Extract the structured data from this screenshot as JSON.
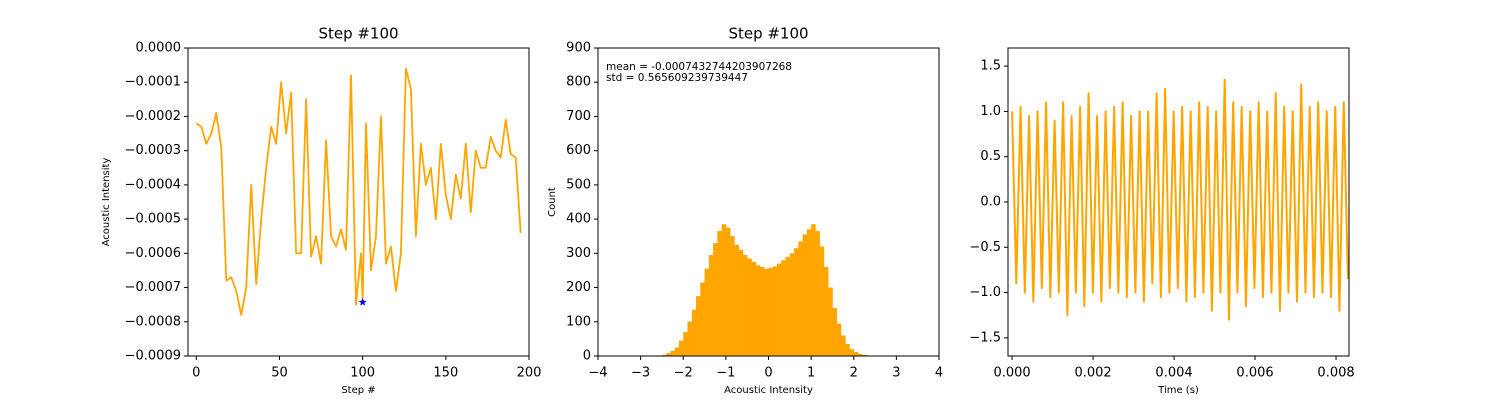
{
  "chart_data": [
    {
      "type": "line",
      "title": "Step #100",
      "xlabel": "Step #",
      "ylabel": "Acoustic Intensity",
      "color": "#ffa500",
      "x": [
        0,
        3,
        6,
        9,
        12,
        15,
        18,
        21,
        24,
        27,
        30,
        33,
        36,
        39,
        42,
        45,
        48,
        51,
        54,
        57,
        60,
        63,
        66,
        69,
        72,
        75,
        78,
        81,
        84,
        87,
        90,
        93,
        96,
        99,
        100,
        102,
        105,
        108,
        111,
        114,
        117,
        120,
        123,
        126,
        129,
        132,
        135,
        138,
        141,
        144,
        147,
        150,
        153,
        156,
        159,
        162,
        165,
        168,
        171,
        174,
        177,
        180,
        183,
        186,
        189,
        192,
        195
      ],
      "values": [
        -0.00022,
        -0.00023,
        -0.00028,
        -0.00025,
        -0.00019,
        -0.00029,
        -0.00068,
        -0.00067,
        -0.00071,
        -0.00078,
        -0.0007,
        -0.0004,
        -0.00069,
        -0.0005,
        -0.00035,
        -0.00023,
        -0.00028,
        -0.0001,
        -0.00025,
        -0.00013,
        -0.0006,
        -0.0006,
        -0.00015,
        -0.00061,
        -0.00055,
        -0.00063,
        -0.00027,
        -0.00055,
        -0.00058,
        -0.00053,
        -0.00059,
        -8e-05,
        -0.00075,
        -0.0006,
        -0.000743,
        -0.00022,
        -0.00065,
        -0.00055,
        -0.0002,
        -0.00063,
        -0.00058,
        -0.00071,
        -0.0006,
        -6e-05,
        -0.00012,
        -0.00055,
        -0.00028,
        -0.0004,
        -0.00035,
        -0.0005,
        -0.00028,
        -0.00043,
        -0.0005,
        -0.00037,
        -0.00044,
        -0.00028,
        -0.00048,
        -0.0003,
        -0.00035,
        -0.00035,
        -0.00026,
        -0.0003,
        -0.00032,
        -0.00021,
        -0.00031,
        -0.00032,
        -0.00054
      ],
      "marker": {
        "x": 100,
        "y": -0.000743,
        "color": "#0000ff"
      },
      "xlim": [
        -5,
        200
      ],
      "ylim": [
        -0.0009,
        0
      ],
      "xticks": [
        0,
        50,
        100,
        150,
        200
      ],
      "yticks": [
        {
          "value": -0.0009,
          "label": "−0.0009"
        },
        {
          "value": -0.0008,
          "label": "−0.0008"
        },
        {
          "value": -0.0007,
          "label": "−0.0007"
        },
        {
          "value": -0.0006,
          "label": "−0.0006"
        },
        {
          "value": -0.0005,
          "label": "−0.0005"
        },
        {
          "value": -0.0004,
          "label": "−0.0004"
        },
        {
          "value": -0.0003,
          "label": "−0.0003"
        },
        {
          "value": -0.0002,
          "label": "−0.0002"
        },
        {
          "value": -0.0001,
          "label": "−0.0001"
        },
        {
          "value": 0,
          "label": "0.0000"
        }
      ]
    },
    {
      "type": "histogram",
      "title": "Step #100",
      "xlabel": "Acoustic Intensity",
      "ylabel": "Count",
      "color": "#ffa500",
      "annotations": [
        "mean = -0.0007432744203907268",
        "std = 0.565609239739447"
      ],
      "bins": [
        -2.5,
        -2.4,
        -2.3,
        -2.2,
        -2.1,
        -2,
        -1.9,
        -1.8,
        -1.7,
        -1.6,
        -1.5,
        -1.4,
        -1.3,
        -1.2,
        -1.1,
        -1,
        -0.9,
        -0.8,
        -0.7,
        -0.6,
        -0.5,
        -0.4,
        -0.3,
        -0.2,
        -0.1,
        0,
        0.1,
        0.2,
        0.3,
        0.4,
        0.5,
        0.6,
        0.7,
        0.8,
        0.9,
        1,
        1.1,
        1.2,
        1.3,
        1.4,
        1.5,
        1.6,
        1.7,
        1.8,
        1.9,
        2,
        2.1,
        2.2,
        2.3,
        2.4,
        2.5
      ],
      "values": [
        3,
        8,
        15,
        25,
        45,
        70,
        100,
        135,
        175,
        215,
        255,
        295,
        330,
        365,
        385,
        375,
        350,
        325,
        310,
        295,
        285,
        275,
        265,
        260,
        255,
        258,
        262,
        270,
        280,
        290,
        300,
        315,
        335,
        355,
        370,
        385,
        365,
        320,
        260,
        200,
        140,
        95,
        60,
        35,
        20,
        12,
        6,
        3,
        1,
        1
      ],
      "xlim": [
        -4,
        4
      ],
      "ylim": [
        0,
        900
      ],
      "xticks": [
        {
          "value": -4,
          "label": "−4"
        },
        {
          "value": -3,
          "label": "−3"
        },
        {
          "value": -2,
          "label": "−2"
        },
        {
          "value": -1,
          "label": "−1"
        },
        0,
        1,
        2,
        3,
        4
      ],
      "yticks": [
        0,
        100,
        200,
        300,
        400,
        500,
        600,
        700,
        800,
        900
      ]
    },
    {
      "type": "line",
      "xlabel": "Time (s)",
      "color": "#ffa500",
      "x": [
        0,
        0.000105,
        0.00021,
        0.000315,
        0.00042,
        0.000525,
        0.00063,
        0.000735,
        0.00084,
        0.000945,
        0.00105,
        0.001155,
        0.00126,
        0.001365,
        0.00147,
        0.001575,
        0.00168,
        0.001785,
        0.00189,
        0.001995,
        0.0021,
        0.002205,
        0.00231,
        0.002415,
        0.00252,
        0.002625,
        0.00273,
        0.002835,
        0.00294,
        0.003045,
        0.00315,
        0.003255,
        0.00336,
        0.003465,
        0.00357,
        0.003675,
        0.00378,
        0.003885,
        0.00399,
        0.004095,
        0.0042,
        0.004305,
        0.00441,
        0.004515,
        0.00462,
        0.004725,
        0.00483,
        0.004935,
        0.00504,
        0.005145,
        0.00525,
        0.005355,
        0.00546,
        0.005565,
        0.00567,
        0.005775,
        0.00588,
        0.005985,
        0.00609,
        0.006195,
        0.0063,
        0.006405,
        0.00651,
        0.006615,
        0.00672,
        0.006825,
        0.00693,
        0.007035,
        0.00714,
        0.007245,
        0.00735,
        0.007455,
        0.00756,
        0.007665,
        0.00777,
        0.007875,
        0.00798,
        0.008085,
        0.00819,
        0.008295
      ],
      "values": [
        1.0,
        -0.9,
        1.05,
        -1.0,
        0.95,
        -1.1,
        1.0,
        -0.95,
        1.1,
        -1.05,
        0.9,
        -1.0,
        1.1,
        -1.25,
        0.95,
        -1.0,
        1.05,
        -1.15,
        1.2,
        -1.0,
        0.95,
        -1.1,
        1.0,
        -0.95,
        1.05,
        -1.0,
        1.1,
        -1.05,
        0.95,
        -1.0,
        1.0,
        -1.1,
        1.0,
        -0.9,
        1.2,
        -1.05,
        1.25,
        -1.0,
        1.0,
        -0.95,
        1.05,
        -1.1,
        1.0,
        -1.05,
        1.1,
        -1.0,
        1.05,
        -1.2,
        1.0,
        -1.0,
        1.35,
        -1.3,
        1.1,
        -1.0,
        1.05,
        -1.15,
        1.0,
        -0.95,
        1.1,
        -1.05,
        1.0,
        -1.0,
        1.2,
        -1.2,
        1.05,
        -1.0,
        1.0,
        -1.1,
        1.3,
        -1.0,
        1.05,
        -1.05,
        1.1,
        -1.0,
        1.0,
        -1.05,
        1.05,
        -1.2,
        1.1,
        -0.85
      ],
      "xlim": [
        -0.0001,
        0.00832
      ],
      "ylim": [
        -1.7,
        1.7
      ],
      "xticks": [
        {
          "value": 0,
          "label": "0.000"
        },
        {
          "value": 0.002,
          "label": "0.002"
        },
        {
          "value": 0.004,
          "label": "0.004"
        },
        {
          "value": 0.006,
          "label": "0.006"
        },
        {
          "value": 0.008,
          "label": "0.008"
        }
      ],
      "yticks": [
        {
          "value": -1.5,
          "label": "−1.5"
        },
        {
          "value": -1,
          "label": "−1.0"
        },
        {
          "value": -0.5,
          "label": "−0.5"
        },
        {
          "value": 0,
          "label": "0.0"
        },
        {
          "value": 0.5,
          "label": "0.5"
        },
        {
          "value": 1,
          "label": "1.0"
        },
        {
          "value": 1.5,
          "label": "1.5"
        }
      ]
    }
  ]
}
